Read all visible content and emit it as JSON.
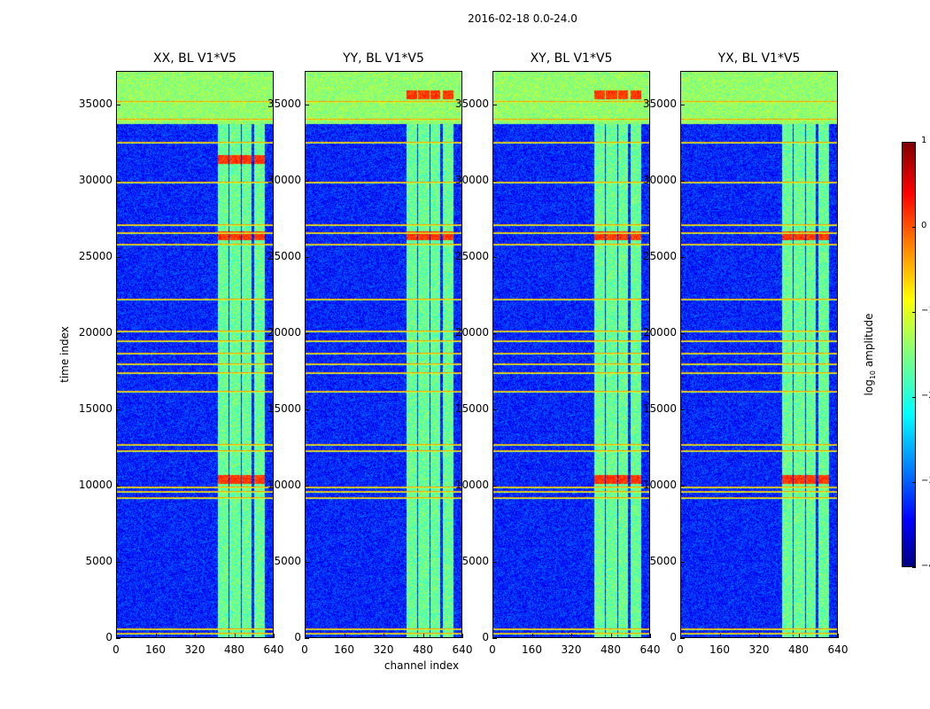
{
  "chart_data": {
    "type": "heatmap",
    "title": "2016-02-18 0.0-24.0",
    "xlabel": "channel index",
    "ylabel": "time index",
    "xlim": [
      0,
      640
    ],
    "ylim": [
      0,
      37200
    ],
    "xticks": [
      0,
      160,
      320,
      480,
      640
    ],
    "yticks": [
      0,
      5000,
      10000,
      15000,
      20000,
      25000,
      30000,
      35000
    ],
    "colormap": "jet",
    "color_range": [
      -4,
      1
    ],
    "colorbar": {
      "label": "log",
      "label_sub": "10",
      "label_rest": " amplitude",
      "ticks": [
        1,
        0,
        -1,
        -2,
        -3,
        -4
      ],
      "tick_labels": [
        "1",
        "0",
        "−1",
        "−2",
        "−3",
        "−4"
      ]
    },
    "panels": [
      {
        "title": "XX, BL V1*V5",
        "hot_rows": [
          10500,
          26500,
          31500
        ],
        "hot_channels": [
          430,
          470,
          510,
          560
        ]
      },
      {
        "title": "YY, BL V1*V5",
        "hot_rows": [
          26500,
          35700
        ],
        "hot_channels": [
          430,
          470,
          510,
          560
        ]
      },
      {
        "title": "XY, BL V1*V5",
        "hot_rows": [
          10500,
          26500,
          35700
        ],
        "hot_channels": [
          430,
          470,
          510,
          560
        ]
      },
      {
        "title": "YX, BL V1*V5",
        "hot_rows": [
          10500,
          26500
        ],
        "hot_channels": [
          430,
          470,
          510,
          560
        ]
      }
    ],
    "data_description": {
      "background_level": -3.2,
      "band_level": -1.6,
      "band_channels": [
        [
          408,
          450
        ],
        [
          455,
          500
        ],
        [
          505,
          545
        ],
        [
          555,
          600
        ]
      ],
      "top_noisy_band_rows": [
        33800,
        37200
      ],
      "flag_line_rows": [
        400,
        700,
        9300,
        9700,
        10000,
        12400,
        12800,
        16300,
        17500,
        18100,
        18800,
        19600,
        20200,
        22300,
        25900,
        26700,
        27200,
        30000,
        32600,
        34100,
        35300
      ]
    }
  }
}
